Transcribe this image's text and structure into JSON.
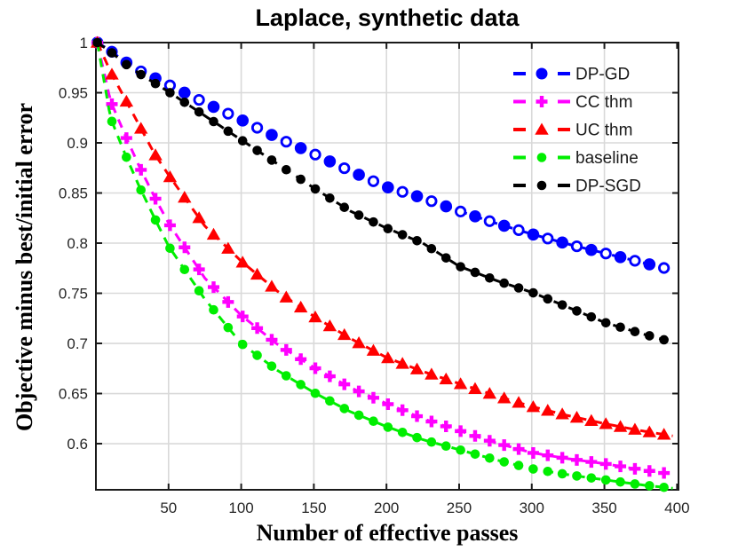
{
  "chart_data": {
    "type": "line",
    "title": "Laplace, synthetic data",
    "xlabel": "Number of effective passes",
    "ylabel": "Objective minus best/initial error",
    "xlim": [
      0,
      401
    ],
    "ylim": [
      0.554,
      1.0
    ],
    "x_ticks": [
      50,
      100,
      150,
      200,
      250,
      300,
      350,
      400
    ],
    "y_ticks": [
      1,
      0.95,
      0.9,
      0.85,
      0.8,
      0.75,
      0.7,
      0.65,
      0.6
    ],
    "grid": true,
    "legend_position": "upper right",
    "line_style": "dashed",
    "x": [
      1,
      10,
      20,
      30,
      40,
      50,
      75,
      100,
      125,
      150,
      175,
      200,
      225,
      250,
      275,
      300,
      325,
      350,
      375,
      400
    ],
    "series": [
      {
        "name": "DP-GD",
        "color": "#0000ff",
        "marker": "circle-alt",
        "values": [
          1.0,
          0.992,
          0.981,
          0.972,
          0.965,
          0.958,
          0.94,
          0.923,
          0.905,
          0.889,
          0.872,
          0.856,
          0.845,
          0.832,
          0.82,
          0.809,
          0.799,
          0.79,
          0.781,
          0.772
        ]
      },
      {
        "name": "CC thm",
        "color": "#ff00ff",
        "marker": "plus",
        "values": [
          1.0,
          0.942,
          0.908,
          0.876,
          0.847,
          0.82,
          0.765,
          0.728,
          0.699,
          0.676,
          0.656,
          0.64,
          0.625,
          0.613,
          0.601,
          0.591,
          0.585,
          0.58,
          0.574,
          0.569
        ]
      },
      {
        "name": "UC thm",
        "color": "#ff0000",
        "marker": "triangle",
        "values": [
          1.0,
          0.971,
          0.944,
          0.917,
          0.89,
          0.868,
          0.817,
          0.782,
          0.752,
          0.727,
          0.705,
          0.686,
          0.672,
          0.66,
          0.648,
          0.637,
          0.628,
          0.62,
          0.613,
          0.607
        ]
      },
      {
        "name": "baseline",
        "color": "#00ee00",
        "marker": "dot",
        "values": [
          1.0,
          0.925,
          0.889,
          0.856,
          0.826,
          0.797,
          0.744,
          0.7,
          0.673,
          0.651,
          0.632,
          0.617,
          0.604,
          0.594,
          0.584,
          0.575,
          0.569,
          0.564,
          0.559,
          0.555
        ]
      },
      {
        "name": "DP-SGD",
        "color": "#000000",
        "marker": "dot",
        "values": [
          1.0,
          0.991,
          0.979,
          0.969,
          0.96,
          0.951,
          0.927,
          0.903,
          0.879,
          0.855,
          0.832,
          0.815,
          0.8,
          0.777,
          0.763,
          0.751,
          0.736,
          0.721,
          0.71,
          0.7
        ]
      }
    ],
    "colors": {
      "grid": "#d9d9d9",
      "axis": "#1a1a1a",
      "tick_label": "#262626",
      "legend_text": "#1a1a1a"
    }
  }
}
